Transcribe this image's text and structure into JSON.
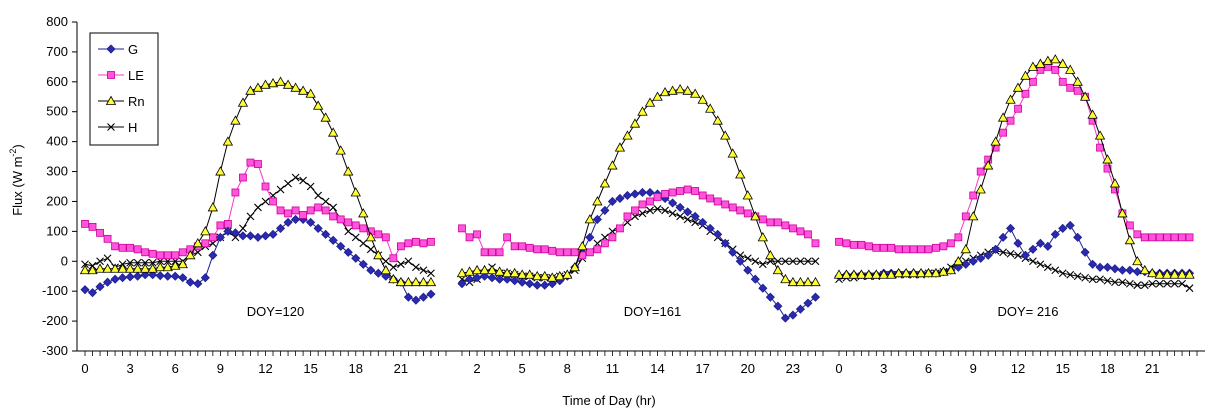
{
  "chart_data": {
    "type": "line",
    "title": "",
    "xlabel": "Time of Day (hr)",
    "ylabel": "Flux (W m",
    "ylabel_sup": "-2",
    "ylabel_end": ")",
    "ylim": [
      -300,
      800
    ],
    "yticks": [
      -300,
      -200,
      -100,
      0,
      100,
      200,
      300,
      400,
      500,
      600,
      700,
      800
    ],
    "legend": {
      "position": "top-left",
      "entries": [
        {
          "name": "G",
          "color": "#1f1f8f",
          "marker": "diamond"
        },
        {
          "name": "LE",
          "color": "#ff33cc",
          "marker": "square"
        },
        {
          "name": "Rn",
          "color": "#000000",
          "marker": "triangle"
        },
        {
          "name": "H",
          "color": "#000000",
          "marker": "x"
        }
      ]
    },
    "panels": [
      {
        "annotation": "DOY=120",
        "tick_labels": [
          "0",
          "3",
          "6",
          "9",
          "12",
          "15",
          "18",
          "21"
        ],
        "tick_values": [
          0,
          3,
          6,
          9,
          12,
          15,
          18,
          21
        ],
        "x": [
          0,
          0.5,
          1,
          1.5,
          2,
          2.5,
          3,
          3.5,
          4,
          4.5,
          5,
          5.5,
          6,
          6.5,
          7,
          7.5,
          8,
          8.5,
          9,
          9.5,
          10,
          10.5,
          11,
          11.5,
          12,
          12.5,
          13,
          13.5,
          14,
          14.5,
          15,
          15.5,
          16,
          16.5,
          17,
          17.5,
          18,
          18.5,
          19,
          19.5,
          20,
          20.5,
          21,
          21.5,
          22,
          22.5,
          23
        ],
        "series": {
          "G": [
            -95,
            -105,
            -85,
            -70,
            -60,
            -55,
            -52,
            -50,
            -45,
            -45,
            -48,
            -50,
            -50,
            -55,
            -70,
            -75,
            -55,
            20,
            80,
            100,
            95,
            85,
            85,
            80,
            85,
            90,
            110,
            130,
            140,
            140,
            130,
            110,
            90,
            70,
            50,
            30,
            10,
            -10,
            -30,
            -40,
            -50,
            -60,
            -70,
            -120,
            -130,
            -120,
            -110
          ],
          "LE": [
            125,
            115,
            95,
            75,
            50,
            45,
            45,
            40,
            30,
            25,
            20,
            20,
            20,
            30,
            40,
            50,
            60,
            80,
            120,
            125,
            230,
            280,
            330,
            325,
            250,
            200,
            170,
            160,
            170,
            155,
            170,
            180,
            170,
            150,
            140,
            130,
            120,
            110,
            100,
            90,
            80,
            10,
            50,
            60,
            65,
            60,
            65
          ],
          "Rn": [
            -30,
            -30,
            -25,
            -25,
            -25,
            -25,
            -25,
            -25,
            -25,
            -25,
            -20,
            -20,
            -15,
            -10,
            20,
            60,
            100,
            180,
            300,
            400,
            470,
            530,
            570,
            580,
            590,
            595,
            600,
            590,
            580,
            570,
            560,
            520,
            480,
            430,
            370,
            300,
            230,
            160,
            80,
            20,
            -30,
            -60,
            -70,
            -70,
            -70,
            -70,
            -70
          ],
          "H": [
            -10,
            -15,
            0,
            10,
            -20,
            -10,
            -5,
            -5,
            -5,
            -5,
            0,
            0,
            0,
            0,
            20,
            30,
            50,
            60,
            80,
            100,
            80,
            110,
            150,
            180,
            200,
            220,
            240,
            260,
            280,
            270,
            250,
            220,
            200,
            180,
            140,
            100,
            80,
            60,
            40,
            20,
            0,
            -20,
            -10,
            0,
            -20,
            -30,
            -40
          ]
        }
      },
      {
        "annotation": "DOY=161",
        "tick_labels": [
          "2",
          "5",
          "8",
          "11",
          "14",
          "17",
          "20",
          "23"
        ],
        "tick_values": [
          2,
          5,
          8,
          11,
          14,
          17,
          20,
          23
        ],
        "x": [
          0,
          0.5,
          1,
          1.5,
          2,
          2.5,
          3,
          3.5,
          4,
          4.5,
          5,
          5.5,
          6,
          6.5,
          7,
          7.5,
          8,
          8.5,
          9,
          9.5,
          10,
          10.5,
          11,
          11.5,
          12,
          12.5,
          13,
          13.5,
          14,
          14.5,
          15,
          15.5,
          16,
          16.5,
          17,
          17.5,
          18,
          18.5,
          19,
          19.5,
          20,
          20.5,
          21,
          21.5,
          22,
          22.5,
          23,
          23.5
        ],
        "series": {
          "G": [
            -75,
            -60,
            -55,
            -50,
            -55,
            -60,
            -60,
            -65,
            -70,
            -75,
            -80,
            -80,
            -75,
            -65,
            -50,
            -20,
            30,
            80,
            140,
            170,
            200,
            210,
            220,
            225,
            230,
            230,
            225,
            210,
            195,
            180,
            165,
            150,
            130,
            110,
            90,
            60,
            30,
            0,
            -30,
            -60,
            -90,
            -120,
            -150,
            -190,
            -180,
            -160,
            -140,
            -120
          ],
          "LE": [
            110,
            80,
            90,
            30,
            30,
            30,
            80,
            50,
            50,
            45,
            40,
            40,
            35,
            30,
            30,
            30,
            20,
            30,
            40,
            60,
            80,
            110,
            150,
            170,
            190,
            200,
            215,
            225,
            230,
            235,
            240,
            235,
            220,
            210,
            200,
            190,
            180,
            170,
            160,
            150,
            140,
            130,
            130,
            120,
            110,
            100,
            90,
            60
          ],
          "Rn": [
            -40,
            -35,
            -30,
            -30,
            -30,
            -35,
            -40,
            -40,
            -45,
            -45,
            -50,
            -50,
            -55,
            -50,
            -45,
            -20,
            50,
            140,
            200,
            260,
            320,
            380,
            420,
            460,
            500,
            530,
            550,
            565,
            570,
            575,
            570,
            560,
            540,
            510,
            470,
            420,
            360,
            290,
            220,
            150,
            80,
            20,
            -30,
            -60,
            -70,
            -70,
            -70,
            -70
          ],
          "H": [
            -60,
            -70,
            -60,
            -40,
            -20,
            -40,
            -40,
            -45,
            -50,
            -50,
            -55,
            -55,
            -55,
            -50,
            -45,
            -30,
            10,
            30,
            60,
            80,
            100,
            110,
            130,
            150,
            160,
            170,
            175,
            170,
            160,
            150,
            140,
            130,
            120,
            100,
            80,
            60,
            40,
            20,
            10,
            0,
            -10,
            0,
            0,
            0,
            0,
            0,
            0,
            0
          ]
        }
      },
      {
        "annotation": "DOY= 216",
        "tick_labels": [
          "0",
          "3",
          "6",
          "9",
          "12",
          "15",
          "18",
          "21"
        ],
        "tick_values": [
          0,
          3,
          6,
          9,
          12,
          15,
          18,
          21
        ],
        "x": [
          0,
          0.5,
          1,
          1.5,
          2,
          2.5,
          3,
          3.5,
          4,
          4.5,
          5,
          5.5,
          6,
          6.5,
          7,
          7.5,
          8,
          8.5,
          9,
          9.5,
          10,
          10.5,
          11,
          11.5,
          12,
          12.5,
          13,
          13.5,
          14,
          14.5,
          15,
          15.5,
          16,
          16.5,
          17,
          17.5,
          18,
          18.5,
          19,
          19.5,
          20,
          20.5,
          21,
          21.5,
          22,
          22.5,
          23,
          23.5
        ],
        "series": {
          "G": [
            -50,
            -45,
            -45,
            -45,
            -45,
            -45,
            -40,
            -40,
            -40,
            -40,
            -40,
            -40,
            -40,
            -40,
            -35,
            -30,
            -20,
            -10,
            0,
            10,
            20,
            40,
            80,
            110,
            60,
            20,
            40,
            60,
            50,
            90,
            110,
            120,
            80,
            30,
            -10,
            -20,
            -20,
            -25,
            -30,
            -30,
            -35,
            -35,
            -40,
            -40,
            -40,
            -40,
            -40,
            -40
          ],
          "LE": [
            65,
            60,
            55,
            55,
            50,
            45,
            45,
            45,
            40,
            40,
            40,
            40,
            40,
            45,
            50,
            60,
            80,
            150,
            220,
            300,
            340,
            380,
            430,
            470,
            510,
            560,
            600,
            640,
            650,
            640,
            600,
            580,
            570,
            550,
            470,
            380,
            310,
            240,
            160,
            120,
            90,
            80,
            80,
            80,
            80,
            80,
            80,
            80
          ],
          "Rn": [
            -45,
            -45,
            -45,
            -45,
            -45,
            -45,
            -45,
            -45,
            -40,
            -40,
            -40,
            -40,
            -40,
            -40,
            -35,
            -30,
            0,
            40,
            150,
            240,
            320,
            400,
            480,
            540,
            580,
            620,
            650,
            660,
            670,
            675,
            660,
            640,
            600,
            550,
            490,
            420,
            340,
            260,
            160,
            70,
            0,
            -30,
            -40,
            -45,
            -45,
            -45,
            -45,
            -45
          ],
          "H": [
            -60,
            -55,
            -55,
            -50,
            -50,
            -50,
            -45,
            -45,
            -45,
            -45,
            -45,
            -45,
            -40,
            -40,
            -35,
            -20,
            -10,
            0,
            10,
            20,
            30,
            35,
            30,
            25,
            20,
            10,
            0,
            -10,
            -20,
            -30,
            -40,
            -45,
            -50,
            -55,
            -60,
            -60,
            -65,
            -70,
            -70,
            -75,
            -80,
            -80,
            -75,
            -75,
            -75,
            -75,
            -75,
            -90
          ]
        }
      }
    ]
  }
}
